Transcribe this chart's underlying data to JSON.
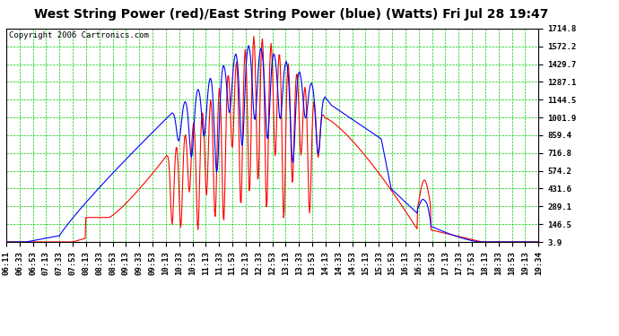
{
  "title": "West String Power (red)/East String Power (blue) (Watts) Fri Jul 28 19:47",
  "copyright": "Copyright 2006 Cartronics.com",
  "background_color": "#ffffff",
  "plot_bg_color": "#ffffff",
  "grid_color": "#00cc00",
  "y_ticks": [
    3.9,
    146.5,
    289.1,
    431.6,
    574.2,
    716.8,
    859.4,
    1001.9,
    1144.5,
    1287.1,
    1429.7,
    1572.2,
    1714.8
  ],
  "x_tick_labels": [
    "06:11",
    "06:33",
    "06:53",
    "07:13",
    "07:33",
    "07:53",
    "08:13",
    "08:33",
    "08:53",
    "09:13",
    "09:33",
    "09:53",
    "10:13",
    "10:33",
    "10:53",
    "11:13",
    "11:33",
    "11:53",
    "12:13",
    "12:33",
    "12:53",
    "13:13",
    "13:33",
    "13:53",
    "14:13",
    "14:33",
    "14:53",
    "15:13",
    "15:33",
    "15:53",
    "16:13",
    "16:33",
    "16:53",
    "17:13",
    "17:33",
    "17:53",
    "18:13",
    "18:33",
    "18:53",
    "19:13",
    "19:34"
  ],
  "red_color": "#ff0000",
  "blue_color": "#0000ff",
  "line_width": 0.8,
  "title_fontsize": 10,
  "tick_fontsize": 6.5,
  "copyright_fontsize": 6.5,
  "ymin": 3.9,
  "ymax": 1714.8
}
